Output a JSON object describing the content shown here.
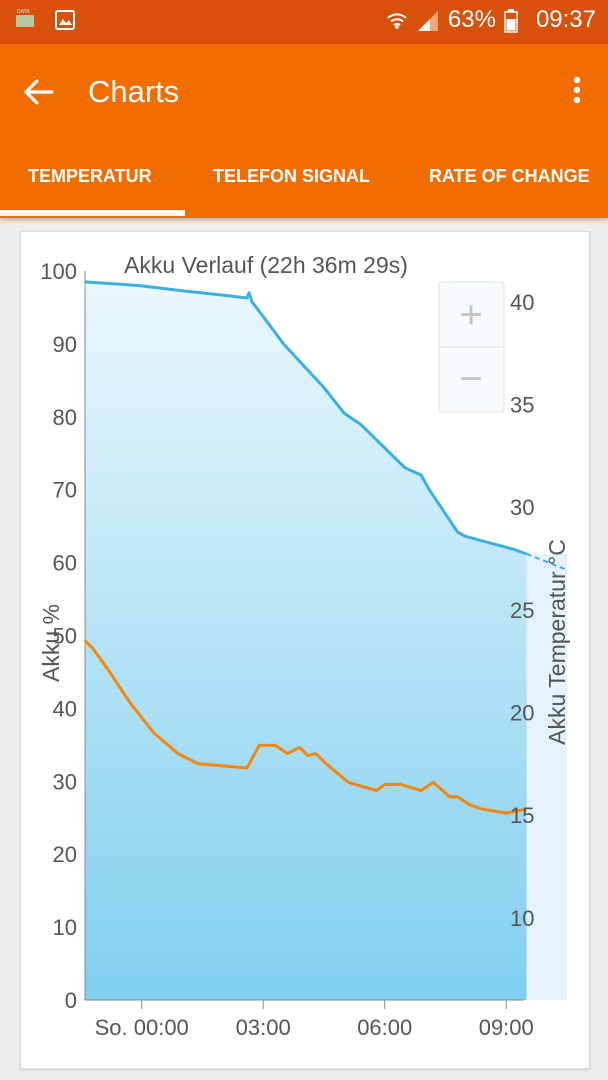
{
  "statusbar": {
    "battery_percent": "63%",
    "time": "09:37",
    "icons": [
      "sim-data-icon",
      "image-notification-icon",
      "wifi-icon",
      "cell-signal-icon",
      "battery-icon"
    ]
  },
  "appbar": {
    "title": "Charts",
    "back_icon": "arrow-left-icon",
    "menu_icon": "more-vert-icon"
  },
  "tabs": [
    {
      "label": "TEMPERATUR",
      "selected": true
    },
    {
      "label": "TELEFON SIGNAL",
      "selected": false
    },
    {
      "label": "RATE OF CHANGE",
      "selected": false
    }
  ],
  "zoom": {
    "plus": "+",
    "minus": "−"
  },
  "colors": {
    "statusbar": "#d8500a",
    "appbar": "#f26d00",
    "battery_line": "#3bb0e0",
    "temperature_line": "#f3870f"
  },
  "chart_data": {
    "type": "line",
    "title": "Akku Verlauf (22h 36m 29s)",
    "ylabel": "Akku %",
    "y2label": "Akku Temperatur °C",
    "x_ticks": [
      "So. 00:00",
      "03:00",
      "06:00",
      "09:00"
    ],
    "x_tick_hours": [
      0,
      3,
      6,
      9
    ],
    "xlim": [
      -1.4,
      10.5
    ],
    "ylim": [
      0,
      100
    ],
    "y2lim": [
      6,
      41.5
    ],
    "y_ticks": [
      0,
      10,
      20,
      30,
      40,
      50,
      60,
      70,
      80,
      90,
      100
    ],
    "y2_ticks": [
      10,
      15,
      20,
      25,
      30,
      35,
      40
    ],
    "series": [
      {
        "name": "Akku %",
        "axis": "left",
        "color": "#3bb0e0",
        "x": [
          -1.4,
          -0.05,
          1.0,
          2.0,
          2.6,
          2.65,
          2.72,
          3.1,
          3.5,
          4.5,
          5.0,
          5.4,
          6.5,
          6.9,
          7.1,
          7.8,
          8.0,
          9.2,
          9.5
        ],
        "y": [
          98.5,
          98.0,
          97.3,
          96.7,
          96.3,
          97.0,
          95.8,
          93.0,
          90.0,
          84.0,
          80.5,
          79.0,
          73.0,
          72.0,
          70.0,
          64.2,
          63.6,
          61.8,
          61.2
        ],
        "projection": {
          "x": [
            9.5,
            10.5
          ],
          "y": [
            61.2,
            59.0
          ]
        }
      },
      {
        "name": "Akku Temperatur °C",
        "axis": "right",
        "color": "#f3870f",
        "x": [
          -1.4,
          -1.2,
          -0.8,
          -0.3,
          0.3,
          0.9,
          1.4,
          2.6,
          2.9,
          3.3,
          3.6,
          3.9,
          4.1,
          4.3,
          4.5,
          5.1,
          5.8,
          6.0,
          6.4,
          6.9,
          7.2,
          7.6,
          7.8,
          8.1,
          8.4,
          9.0,
          9.5
        ],
        "y": [
          23.5,
          23.1,
          22.0,
          20.5,
          19.0,
          18.0,
          17.5,
          17.3,
          18.4,
          18.4,
          18.0,
          18.3,
          17.9,
          18.0,
          17.6,
          16.6,
          16.2,
          16.5,
          16.5,
          16.2,
          16.6,
          15.9,
          15.9,
          15.5,
          15.3,
          15.1,
          15.3
        ]
      }
    ],
    "grid": false,
    "legend": "none"
  }
}
